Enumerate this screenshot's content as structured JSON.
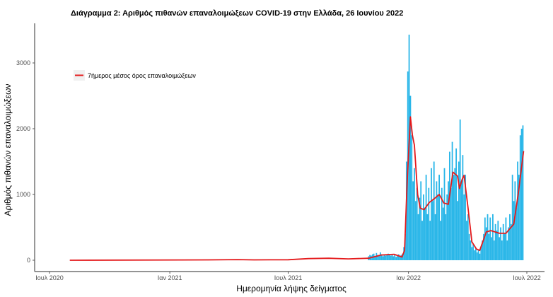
{
  "chart_data": {
    "type": "bar",
    "title": "Διάγραμμα 2: Αριθμός πιθανών επαναλοιμώξεων COVID-19 στην Ελλάδα, 26 Ιουνίου 2022",
    "xlabel": "Ημερομηνία λήψης δείγματος",
    "ylabel": "Αριθμός πιθανών επαναλοιμώξεων",
    "ylim": [
      0,
      3500
    ],
    "xlim": [
      "2020-06-20",
      "2022-07-10"
    ],
    "yticks": [
      0,
      1000,
      2000,
      3000
    ],
    "xticks": [
      {
        "date": "2020-07-01",
        "label": "Ιουλ 2020"
      },
      {
        "date": "2021-01-01",
        "label": "Ιαν 2021"
      },
      {
        "date": "2021-07-01",
        "label": "Ιουλ 2021"
      },
      {
        "date": "2022-01-01",
        "label": "Ιαν 2022"
      },
      {
        "date": "2022-07-01",
        "label": "Ιουλ 2022"
      }
    ],
    "grid": false,
    "legend_position": "top-left",
    "colors": {
      "bars": "#29b6e8",
      "line": "#e41a1c"
    },
    "bars": {
      "x": [
        "2021-11-01",
        "2021-11-03",
        "2021-11-05",
        "2021-11-07",
        "2021-11-09",
        "2021-11-11",
        "2021-11-13",
        "2021-11-15",
        "2021-11-17",
        "2021-11-19",
        "2021-11-21",
        "2021-11-23",
        "2021-11-25",
        "2021-11-27",
        "2021-11-29",
        "2021-12-01",
        "2021-12-03",
        "2021-12-05",
        "2021-12-07",
        "2021-12-09",
        "2021-12-11",
        "2021-12-13",
        "2021-12-15",
        "2021-12-17",
        "2021-12-19",
        "2021-12-21",
        "2021-12-23",
        "2021-12-25",
        "2021-12-27",
        "2021-12-29",
        "2021-12-31",
        "2022-01-02",
        "2022-01-04",
        "2022-01-06",
        "2022-01-08",
        "2022-01-10",
        "2022-01-12",
        "2022-01-14",
        "2022-01-16",
        "2022-01-18",
        "2022-01-20",
        "2022-01-22",
        "2022-01-24",
        "2022-01-26",
        "2022-01-28",
        "2022-01-30",
        "2022-02-01",
        "2022-02-03",
        "2022-02-05",
        "2022-02-07",
        "2022-02-09",
        "2022-02-11",
        "2022-02-13",
        "2022-02-15",
        "2022-02-17",
        "2022-02-19",
        "2022-02-21",
        "2022-02-23",
        "2022-02-25",
        "2022-02-27",
        "2022-03-01",
        "2022-03-03",
        "2022-03-05",
        "2022-03-07",
        "2022-03-09",
        "2022-03-11",
        "2022-03-13",
        "2022-03-15",
        "2022-03-17",
        "2022-03-19",
        "2022-03-21",
        "2022-03-23",
        "2022-03-25",
        "2022-03-27",
        "2022-03-29",
        "2022-03-31",
        "2022-04-02",
        "2022-04-04",
        "2022-04-06",
        "2022-04-08",
        "2022-04-10",
        "2022-04-12",
        "2022-04-14",
        "2022-04-16",
        "2022-04-18",
        "2022-04-20",
        "2022-04-22",
        "2022-04-24",
        "2022-04-26",
        "2022-04-28",
        "2022-04-30",
        "2022-05-02",
        "2022-05-04",
        "2022-05-06",
        "2022-05-08",
        "2022-05-10",
        "2022-05-12",
        "2022-05-14",
        "2022-05-16",
        "2022-05-18",
        "2022-05-20",
        "2022-05-22",
        "2022-05-24",
        "2022-05-26",
        "2022-05-28",
        "2022-05-30",
        "2022-06-01",
        "2022-06-03",
        "2022-06-05",
        "2022-06-07",
        "2022-06-09",
        "2022-06-11",
        "2022-06-13",
        "2022-06-15",
        "2022-06-17",
        "2022-06-19",
        "2022-06-21",
        "2022-06-23",
        "2022-06-25"
      ],
      "values": [
        60,
        80,
        70,
        90,
        100,
        60,
        110,
        80,
        70,
        120,
        90,
        60,
        80,
        70,
        90,
        100,
        80,
        70,
        90,
        60,
        80,
        50,
        70,
        90,
        60,
        80,
        100,
        200,
        400,
        1500,
        2870,
        3430,
        2500,
        1900,
        1200,
        1400,
        900,
        1100,
        700,
        950,
        1200,
        600,
        1000,
        800,
        1300,
        700,
        1100,
        600,
        1400,
        900,
        1500,
        700,
        1200,
        1000,
        1300,
        600,
        1100,
        800,
        1400,
        700,
        1000,
        1200,
        1650,
        1100,
        1800,
        1300,
        1400,
        1700,
        900,
        1500,
        2140,
        1200,
        1600,
        1000,
        1300,
        600,
        700,
        400,
        300,
        200,
        250,
        150,
        180,
        120,
        160,
        100,
        200,
        300,
        400,
        650,
        500,
        700,
        400,
        650,
        350,
        700,
        300,
        550,
        450,
        600,
        350,
        500,
        300,
        550,
        400,
        650,
        300,
        500,
        700,
        550,
        1300,
        900,
        1200,
        800,
        1500,
        1300,
        1900,
        2000,
        2050
      ]
    },
    "series": [
      {
        "name": "7ήμερος μέσος όρος επαναλοιμώξεων",
        "type": "line",
        "x": [
          "2020-08-01",
          "2021-03-01",
          "2021-04-15",
          "2021-05-10",
          "2021-07-01",
          "2021-08-01",
          "2021-09-01",
          "2021-10-01",
          "2021-11-01",
          "2021-11-20",
          "2021-12-10",
          "2021-12-22",
          "2021-12-26",
          "2021-12-30",
          "2022-01-04",
          "2022-01-07",
          "2022-01-10",
          "2022-01-15",
          "2022-01-19",
          "2022-01-25",
          "2022-02-02",
          "2022-02-10",
          "2022-02-17",
          "2022-02-24",
          "2022-03-03",
          "2022-03-10",
          "2022-03-17",
          "2022-03-20",
          "2022-03-24",
          "2022-03-27",
          "2022-04-02",
          "2022-04-08",
          "2022-04-15",
          "2022-04-20",
          "2022-04-30",
          "2022-05-07",
          "2022-05-20",
          "2022-05-30",
          "2022-06-11",
          "2022-06-18",
          "2022-06-26"
        ],
        "values": [
          0,
          5,
          10,
          5,
          8,
          25,
          30,
          20,
          30,
          80,
          90,
          50,
          150,
          1200,
          2180,
          1900,
          1750,
          1000,
          790,
          770,
          880,
          940,
          1000,
          870,
          850,
          1340,
          1280,
          1090,
          1230,
          1290,
          800,
          280,
          170,
          150,
          430,
          450,
          410,
          410,
          550,
          1020,
          1660
        ]
      }
    ]
  }
}
